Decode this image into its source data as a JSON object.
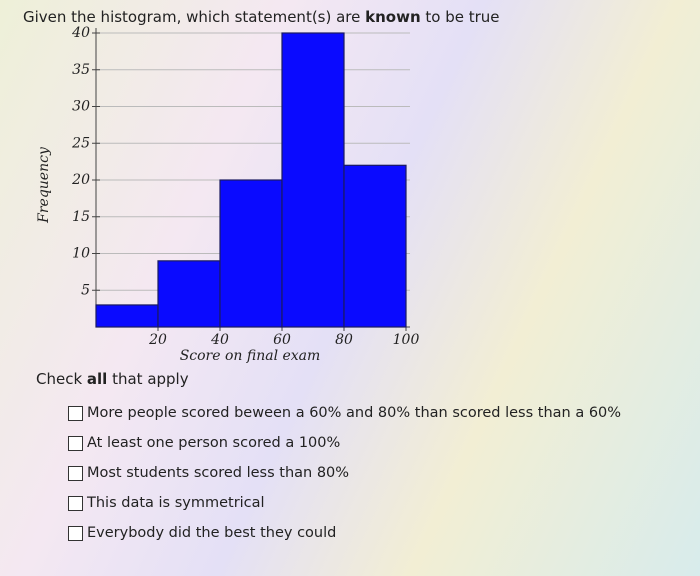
{
  "question": {
    "before": "Given the histogram, which statement(s) are ",
    "emphasis": "known",
    "after": " to be true"
  },
  "chart_data": {
    "type": "histogram",
    "xlabel": "Score on final exam",
    "ylabel": "Frequency",
    "bins": [
      0,
      20,
      40,
      60,
      80,
      100
    ],
    "values": [
      3,
      9,
      20,
      40,
      22
    ],
    "color": "#0a0aff",
    "xlim": [
      0,
      100
    ],
    "xticks": [
      20,
      40,
      60,
      80,
      100
    ],
    "ylim": [
      0,
      40
    ],
    "yticks": [
      5,
      10,
      15,
      20,
      25,
      30,
      35,
      40
    ],
    "grid": true
  },
  "instruction": {
    "before": "Check ",
    "emphasis": "all",
    "after": " that apply"
  },
  "options": [
    "More people scored beween a 60% and 80% than scored less than a 60%",
    "At least one person scored a 100%",
    "Most students scored less than 80%",
    "This data is symmetrical",
    "Everybody did the best they could"
  ]
}
